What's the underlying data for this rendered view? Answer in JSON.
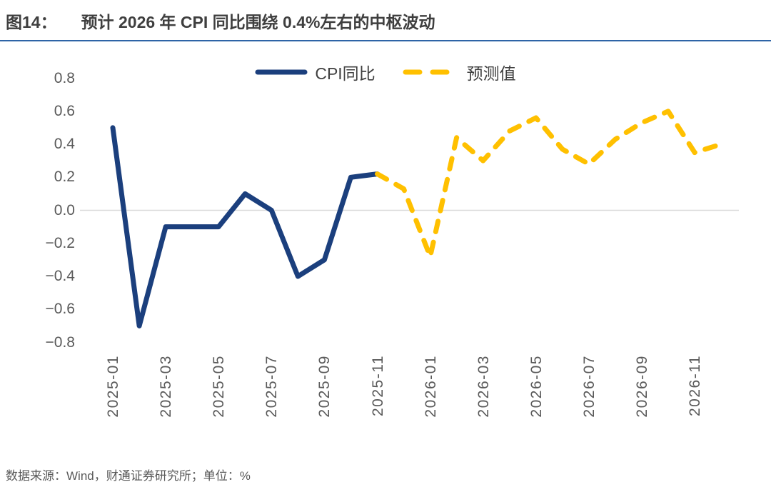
{
  "title": {
    "tag": "图14：",
    "text": "预计 2026 年 CPI 同比围绕 0.4%左右的中枢波动"
  },
  "footer": {
    "text": "数据来源：Wind，财通证券研究所；单位：%"
  },
  "colors": {
    "actual_line": "#1b3f7d",
    "forecast_line": "#ffc000",
    "gridline": "#d9d9d9",
    "axis_text": "#595959",
    "title_text": "#3f3f3f",
    "title_rule": "#2e64a6"
  },
  "chart_data": {
    "type": "line",
    "title": "预计 2026 年 CPI 同比围绕 0.4%左右的中枢波动",
    "xlabel": "",
    "ylabel": "",
    "unit": "%",
    "grid": "zero-line-only",
    "legend_position": "top-center",
    "ylim": [
      -0.9,
      0.9
    ],
    "x": [
      "2025-01",
      "2025-02",
      "2025-03",
      "2025-04",
      "2025-05",
      "2025-06",
      "2025-07",
      "2025-08",
      "2025-09",
      "2025-10",
      "2025-11",
      "2025-12",
      "2026-01",
      "2026-02",
      "2026-03",
      "2026-04",
      "2026-05",
      "2026-06",
      "2026-07",
      "2026-08",
      "2026-09",
      "2026-10",
      "2026-11",
      "2026-12"
    ],
    "x_tick_labels": [
      "2025-01",
      "2025-03",
      "2025-05",
      "2025-07",
      "2025-09",
      "2025-11",
      "2026-01",
      "2026-03",
      "2026-05",
      "2026-07",
      "2026-09",
      "2026-11"
    ],
    "y_tick_labels": [
      "0.8",
      "0.6",
      "0.4",
      "0.2",
      "0.0",
      "−0.2",
      "−0.4",
      "−0.6",
      "−0.8"
    ],
    "series": [
      {
        "name": "CPI同比",
        "style": "solid",
        "color": "#1b3f7d",
        "values": [
          0.5,
          -0.7,
          -0.1,
          -0.1,
          -0.1,
          0.1,
          0.0,
          -0.4,
          -0.3,
          0.2,
          0.22,
          null,
          null,
          null,
          null,
          null,
          null,
          null,
          null,
          null,
          null,
          null,
          null,
          null
        ]
      },
      {
        "name": "预测值",
        "style": "dashed",
        "color": "#ffc000",
        "values": [
          null,
          null,
          null,
          null,
          null,
          null,
          null,
          null,
          null,
          null,
          0.22,
          0.13,
          -0.28,
          0.44,
          0.3,
          0.48,
          0.56,
          0.37,
          0.28,
          0.43,
          0.53,
          0.6,
          0.35,
          0.4
        ]
      }
    ]
  }
}
